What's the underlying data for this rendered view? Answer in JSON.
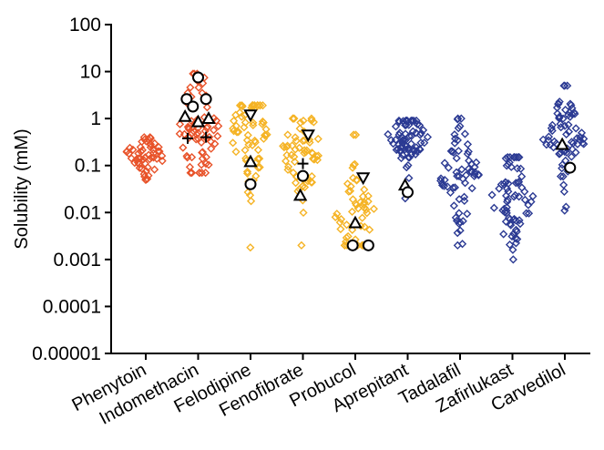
{
  "chart_data": {
    "type": "scatter",
    "title": "",
    "xlabel": "",
    "ylabel": "Solubility (mM)",
    "yscale": "log",
    "ylim": [
      1e-05,
      100
    ],
    "yticks": [
      "100",
      "10",
      "1",
      "0.1",
      "0.01",
      "0.001",
      "0.0001",
      "0.00001"
    ],
    "grid": false,
    "categories": [
      "Phenytoin",
      "Indomethacin",
      "Felodipine",
      "Fenofibrate",
      "Probucol",
      "Aprepitant",
      "Tadalafil",
      "Zafirlukast",
      "Carvedilol"
    ],
    "colors": {
      "Phenytoin": "#e8532a",
      "Indomethacin": "#e8532a",
      "Felodipine": "#f5b324",
      "Fenofibrate": "#f5b324",
      "Probucol": "#f5b324",
      "Aprepitant": "#2b3a93",
      "Tadalafil": "#2b3a93",
      "Zafirlukast": "#2b3a93",
      "Carvedilol": "#2b3a93"
    },
    "point_marker": "diamond-open",
    "distributions": [
      {
        "name": "Phenytoin",
        "median": 0.17,
        "log_spread": 0.25,
        "min": 0.05,
        "max": 0.4,
        "count": 55
      },
      {
        "name": "Indomethacin",
        "median": 0.6,
        "log_spread": 0.7,
        "min": 0.07,
        "max": 9,
        "count": 70
      },
      {
        "name": "Felodipine",
        "median": 0.5,
        "log_spread": 0.6,
        "min": 0.0018,
        "max": 1.9,
        "count": 65
      },
      {
        "name": "Fenofibrate",
        "median": 0.2,
        "log_spread": 0.6,
        "min": 0.002,
        "max": 1,
        "count": 65
      },
      {
        "name": "Probucol",
        "median": 0.008,
        "log_spread": 0.55,
        "min": 0.002,
        "max": 0.45,
        "count": 55
      },
      {
        "name": "Aprepitant",
        "median": 0.4,
        "log_spread": 0.3,
        "min": 0.02,
        "max": 0.9,
        "count": 70
      },
      {
        "name": "Tadalafil",
        "median": 0.06,
        "log_spread": 0.55,
        "min": 0.002,
        "max": 1,
        "count": 65
      },
      {
        "name": "Zafirlukast",
        "median": 0.02,
        "log_spread": 0.6,
        "min": 0.001,
        "max": 0.15,
        "count": 70
      },
      {
        "name": "Carvedilol",
        "median": 0.35,
        "log_spread": 0.5,
        "min": 0.011,
        "max": 5,
        "count": 70
      }
    ],
    "reference_markers": [
      {
        "category": "Indomethacin",
        "marker": "circle",
        "y": 7.5,
        "dx": 0.0
      },
      {
        "category": "Indomethacin",
        "marker": "circle",
        "y": 2.6,
        "dx": -0.22
      },
      {
        "category": "Indomethacin",
        "marker": "circle",
        "y": 2.6,
        "dx": 0.15
      },
      {
        "category": "Indomethacin",
        "marker": "circle",
        "y": 1.8,
        "dx": -0.1
      },
      {
        "category": "Indomethacin",
        "marker": "triangle-up",
        "y": 1.1,
        "dx": -0.25
      },
      {
        "category": "Indomethacin",
        "marker": "triangle-up",
        "y": 0.85,
        "dx": 0.0
      },
      {
        "category": "Indomethacin",
        "marker": "triangle-up",
        "y": 1.0,
        "dx": 0.2
      },
      {
        "category": "Indomethacin",
        "marker": "plus",
        "y": 0.38,
        "dx": -0.2
      },
      {
        "category": "Indomethacin",
        "marker": "plus",
        "y": 0.4,
        "dx": 0.15
      },
      {
        "category": "Felodipine",
        "marker": "triangle-down",
        "y": 1.2,
        "dx": 0.0
      },
      {
        "category": "Felodipine",
        "marker": "triangle-up",
        "y": 0.12,
        "dx": 0.0
      },
      {
        "category": "Felodipine",
        "marker": "circle",
        "y": 0.04,
        "dx": 0.0
      },
      {
        "category": "Fenofibrate",
        "marker": "triangle-down",
        "y": 0.45,
        "dx": 0.1
      },
      {
        "category": "Fenofibrate",
        "marker": "plus",
        "y": 0.11,
        "dx": 0.0
      },
      {
        "category": "Fenofibrate",
        "marker": "circle",
        "y": 0.06,
        "dx": 0.0
      },
      {
        "category": "Fenofibrate",
        "marker": "triangle-up",
        "y": 0.023,
        "dx": -0.05
      },
      {
        "category": "Probucol",
        "marker": "triangle-down",
        "y": 0.055,
        "dx": 0.15
      },
      {
        "category": "Probucol",
        "marker": "triangle-up",
        "y": 0.006,
        "dx": 0.0
      },
      {
        "category": "Probucol",
        "marker": "circle",
        "y": 0.002,
        "dx": -0.05
      },
      {
        "category": "Probucol",
        "marker": "circle",
        "y": 0.002,
        "dx": 0.25
      },
      {
        "category": "Aprepitant",
        "marker": "triangle-up",
        "y": 0.038,
        "dx": -0.05
      },
      {
        "category": "Aprepitant",
        "marker": "circle",
        "y": 0.027,
        "dx": 0.0
      },
      {
        "category": "Carvedilol",
        "marker": "triangle-up",
        "y": 0.28,
        "dx": -0.05
      },
      {
        "category": "Carvedilol",
        "marker": "circle",
        "y": 0.09,
        "dx": 0.1
      }
    ]
  }
}
